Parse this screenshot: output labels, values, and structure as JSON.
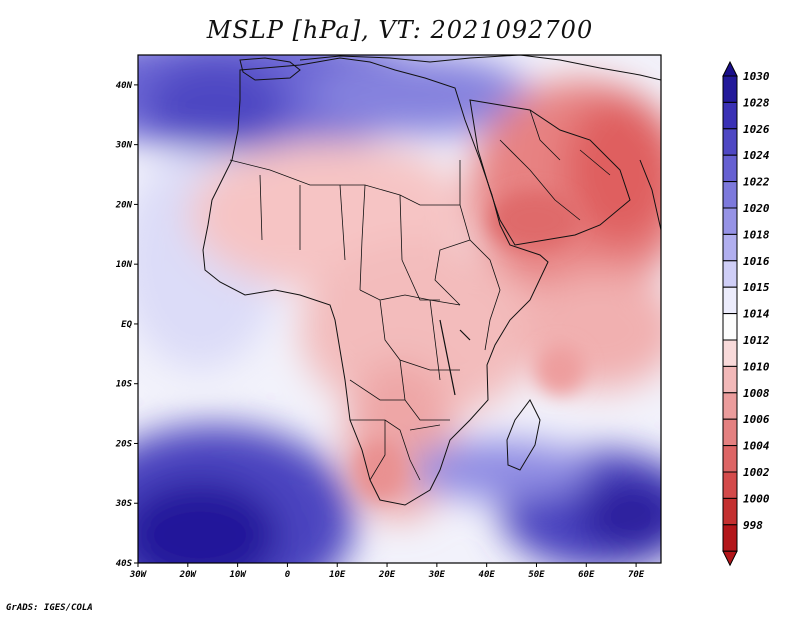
{
  "title": "MSLP [hPa], VT: 2021092700",
  "credit": "GrADS: IGES/COLA",
  "map": {
    "lat_ticks": [
      "40N",
      "30N",
      "20N",
      "10N",
      "EQ",
      "10S",
      "20S",
      "30S",
      "40S"
    ],
    "lon_ticks": [
      "30W",
      "20W",
      "10W",
      "0",
      "10E",
      "20E",
      "30E",
      "40E",
      "50E",
      "60E",
      "70E"
    ],
    "lat_range": [
      -40,
      45
    ],
    "lon_range": [
      -30,
      75
    ]
  },
  "colorbar": {
    "levels": [
      "1030",
      "1028",
      "1026",
      "1024",
      "1022",
      "1020",
      "1018",
      "1016",
      "1015",
      "1014",
      "1012",
      "1010",
      "1008",
      "1006",
      "1004",
      "1002",
      "1000",
      "998"
    ],
    "top_color": "#1a0f8a",
    "bottom_color": "#b3161a",
    "colors": [
      "#231a9a",
      "#3a31b5",
      "#4f48c4",
      "#6660d2",
      "#7d79dc",
      "#9693e6",
      "#b1afef",
      "#cfcef7",
      "#ececfc",
      "#fdfdfd",
      "#f9dada",
      "#f2b8b8",
      "#eb9c9c",
      "#e48080",
      "#dd6565",
      "#d34a4a",
      "#c43030",
      "#b3161a"
    ]
  },
  "palette": {
    "deep_blue": "#2a1d9c",
    "blue": "#5a52c8",
    "light_blue": "#a6a4ec",
    "white": "#f6f6fe",
    "light_red": "#f7caca",
    "red": "#ea8a8a",
    "deep_red": "#de5a5a"
  }
}
